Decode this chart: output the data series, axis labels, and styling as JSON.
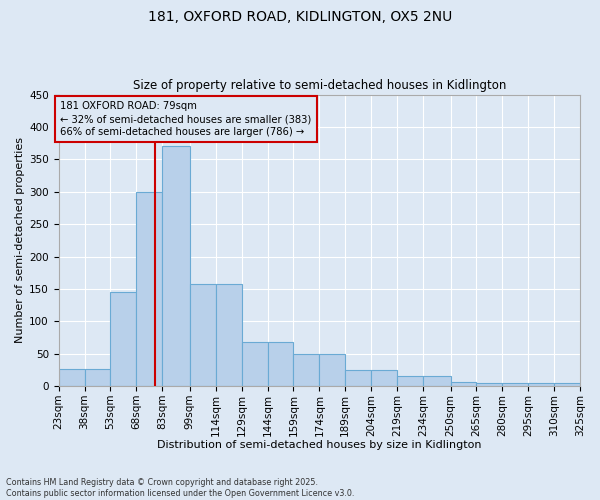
{
  "title1": "181, OXFORD ROAD, KIDLINGTON, OX5 2NU",
  "title2": "Size of property relative to semi-detached houses in Kidlington",
  "xlabel": "Distribution of semi-detached houses by size in Kidlington",
  "ylabel": "Number of semi-detached properties",
  "bin_edges": [
    23,
    38,
    53,
    68,
    83,
    99,
    114,
    129,
    144,
    159,
    174,
    189,
    204,
    219,
    234,
    250,
    265,
    280,
    295,
    310,
    325
  ],
  "bin_labels": [
    "23sqm",
    "38sqm",
    "53sqm",
    "68sqm",
    "83sqm",
    "99sqm",
    "114sqm",
    "129sqm",
    "144sqm",
    "159sqm",
    "174sqm",
    "189sqm",
    "204sqm",
    "219sqm",
    "234sqm",
    "250sqm",
    "265sqm",
    "280sqm",
    "295sqm",
    "310sqm",
    "325sqm"
  ],
  "counts": [
    27,
    27,
    145,
    300,
    370,
    158,
    158,
    68,
    68,
    50,
    50,
    25,
    25,
    15,
    15,
    6,
    4,
    4,
    4,
    4
  ],
  "bar_color": "#b8d0ea",
  "bar_edge_color": "#6aaad4",
  "property_size": 79,
  "annotation_text": "181 OXFORD ROAD: 79sqm\n← 32% of semi-detached houses are smaller (383)\n66% of semi-detached houses are larger (786) →",
  "vline_color": "#cc0000",
  "annotation_box_edge": "#cc0000",
  "footer1": "Contains HM Land Registry data © Crown copyright and database right 2025.",
  "footer2": "Contains public sector information licensed under the Open Government Licence v3.0.",
  "background_color": "#dde8f4",
  "ylim": [
    0,
    450
  ],
  "yticks": [
    0,
    50,
    100,
    150,
    200,
    250,
    300,
    350,
    400,
    450
  ],
  "grid_color": "#ffffff"
}
